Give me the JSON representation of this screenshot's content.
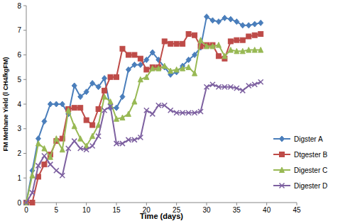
{
  "chart_data": {
    "type": "line",
    "x_label": "Time (days)",
    "y_label": "FM Methane Yield (l CH4/kgFM)",
    "x": [
      0,
      1,
      2,
      3,
      4,
      5,
      6,
      7,
      8,
      9,
      10,
      11,
      12,
      13,
      14,
      15,
      16,
      17,
      18,
      19,
      20,
      21,
      22,
      23,
      24,
      25,
      26,
      27,
      28,
      29,
      30,
      31,
      32,
      33,
      34,
      35,
      36,
      37,
      38,
      39
    ],
    "series": [
      {
        "name": "Digster A",
        "color": "#4a7ebb",
        "marker": "diamond",
        "values": [
          0,
          1.3,
          2.6,
          3.3,
          4.0,
          4.0,
          4.0,
          3.6,
          4.75,
          4.3,
          4.5,
          4.85,
          4.7,
          5.05,
          3.85,
          3.85,
          4.3,
          5.4,
          5.6,
          5.6,
          5.8,
          6.1,
          5.8,
          5.5,
          5.2,
          5.3,
          5.55,
          5.8,
          6.0,
          6.3,
          7.55,
          7.4,
          7.35,
          7.5,
          7.45,
          7.35,
          7.2,
          7.2,
          7.25,
          7.3
        ]
      },
      {
        "name": "Dtgester B",
        "color": "#be4b48",
        "marker": "square",
        "values": [
          0,
          0,
          1.05,
          1.55,
          1.95,
          2.5,
          2.6,
          3.8,
          3.85,
          3.85,
          3.35,
          3.15,
          3.8,
          4.55,
          5.1,
          5.1,
          6.25,
          6.0,
          6.0,
          5.85,
          5.4,
          5.5,
          5.5,
          6.55,
          6.45,
          6.45,
          6.45,
          6.85,
          6.8,
          6.35,
          6.4,
          6.4,
          5.95,
          5.85,
          6.55,
          6.6,
          6.6,
          6.75,
          6.8,
          6.85
        ]
      },
      {
        "name": "Digester C",
        "color": "#98b954",
        "marker": "triangle",
        "values": [
          0,
          1.1,
          2.4,
          2.2,
          1.85,
          2.6,
          2.15,
          3.75,
          3.1,
          2.6,
          2.3,
          2.7,
          3.15,
          4.3,
          4.1,
          3.4,
          3.45,
          3.6,
          4.1,
          5.0,
          5.1,
          5.45,
          5.45,
          5.55,
          5.35,
          5.4,
          5.45,
          5.5,
          5.25,
          6.6,
          6.35,
          6.35,
          6.4,
          5.95,
          6.2,
          6.15,
          6.15,
          6.2,
          6.2,
          6.2
        ]
      },
      {
        "name": "Digester D",
        "color": "#7d60a0",
        "marker": "x",
        "values": [
          0,
          0.4,
          1.5,
          1.9,
          1.55,
          1.3,
          1.1,
          2.2,
          2.5,
          2.2,
          2.15,
          2.3,
          2.7,
          3.75,
          3.9,
          2.4,
          2.4,
          2.55,
          2.55,
          2.65,
          3.75,
          3.6,
          3.95,
          3.95,
          3.75,
          3.65,
          3.65,
          3.65,
          3.65,
          3.7,
          4.7,
          4.8,
          4.7,
          4.7,
          4.7,
          4.65,
          4.55,
          4.75,
          4.8,
          4.9
        ]
      }
    ],
    "xlim": [
      0,
      45
    ],
    "xticks": [
      0,
      5,
      10,
      15,
      20,
      25,
      30,
      35,
      40,
      45
    ],
    "ylim": [
      0,
      8
    ],
    "yticks": [
      0,
      1,
      2,
      3,
      4,
      5,
      6,
      7,
      8
    ],
    "grid": false,
    "legend": "right"
  }
}
